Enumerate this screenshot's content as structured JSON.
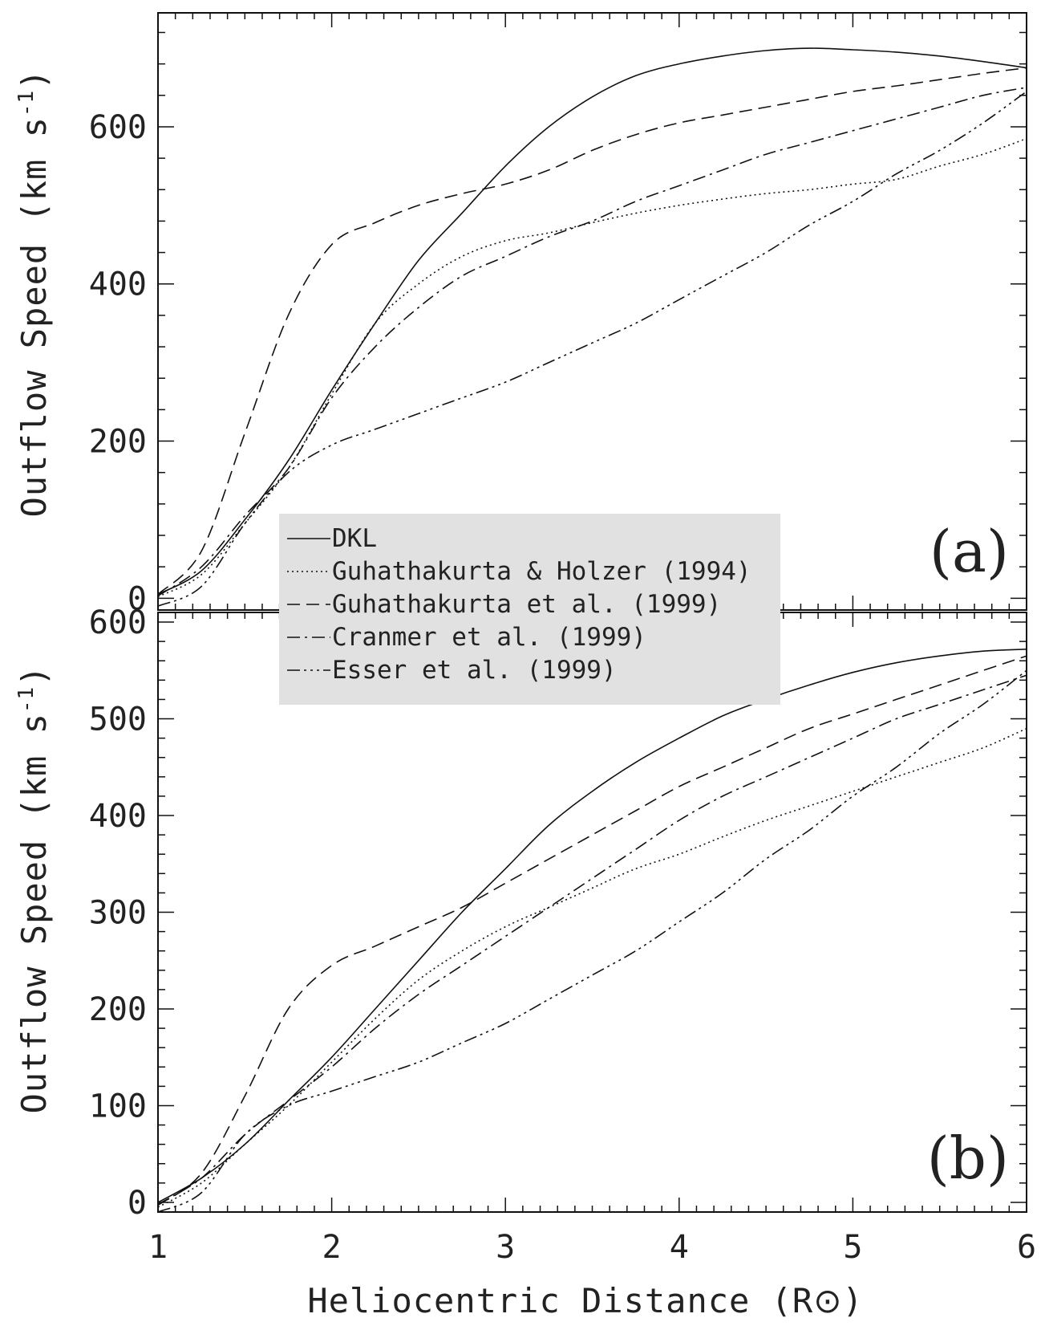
{
  "figure": {
    "xlabel": "Heliocentric Distance (R",
    "xlabel_symbol": "⊙",
    "xlabel_suffix": ")",
    "ylabel_main": "Outflow Speed (km s",
    "ylabel_sup": "-1",
    "ylabel_suffix": ")"
  },
  "legend": {
    "entries": [
      {
        "label": "DKL",
        "style": "solid"
      },
      {
        "label": "Guhathakurta & Holzer (1994)",
        "style": "dotted"
      },
      {
        "label": "Guhathakurta et al. (1999)",
        "style": "dashed"
      },
      {
        "label": "Cranmer et al. (1999)",
        "style": "dashdot"
      },
      {
        "label": "Esser et al. (1999)",
        "style": "dashdotdotdot"
      }
    ]
  },
  "chart_data": [
    {
      "type": "line",
      "panel_label": "(a)",
      "xlabel": "",
      "ylabel": "Outflow Speed (km s-1)",
      "xlim": [
        1,
        6
      ],
      "ylim": [
        -15,
        745
      ],
      "yticks": [
        0,
        200,
        400,
        600
      ],
      "xticks": [
        1,
        2,
        3,
        4,
        5,
        6
      ],
      "grid": false,
      "legend_placement": "center-left",
      "x": [
        1.0,
        1.25,
        1.5,
        1.75,
        2.0,
        2.25,
        2.5,
        2.75,
        3.0,
        3.25,
        3.5,
        3.75,
        4.0,
        4.25,
        4.5,
        4.75,
        5.0,
        5.25,
        5.5,
        5.75,
        6.0
      ],
      "series": [
        {
          "name": "DKL",
          "style": "solid",
          "values": [
            5,
            35,
            100,
            175,
            265,
            350,
            430,
            490,
            550,
            600,
            638,
            665,
            680,
            690,
            697,
            700,
            698,
            695,
            690,
            683,
            675
          ]
        },
        {
          "name": "Guhathakurta & Holzer (1994)",
          "style": "dotted",
          "values": [
            2,
            30,
            95,
            165,
            260,
            350,
            400,
            435,
            455,
            465,
            478,
            490,
            500,
            508,
            515,
            520,
            527,
            533,
            550,
            565,
            585
          ]
        },
        {
          "name": "Guhathakurta et al. (1999)",
          "style": "dashed",
          "values": [
            5,
            60,
            210,
            360,
            450,
            478,
            500,
            515,
            527,
            545,
            570,
            590,
            605,
            615,
            625,
            635,
            645,
            652,
            660,
            668,
            675
          ]
        },
        {
          "name": "Cranmer et al. (1999)",
          "style": "dashdot",
          "values": [
            3,
            40,
            105,
            165,
            255,
            320,
            370,
            410,
            435,
            460,
            480,
            505,
            525,
            545,
            565,
            580,
            595,
            610,
            625,
            640,
            650
          ]
        },
        {
          "name": "Esser et al. (1999)",
          "style": "dashdotdotdot",
          "values": [
            -10,
            15,
            95,
            160,
            195,
            215,
            235,
            255,
            275,
            300,
            325,
            350,
            380,
            410,
            440,
            475,
            505,
            540,
            570,
            605,
            645
          ]
        }
      ]
    },
    {
      "type": "line",
      "panel_label": "(b)",
      "xlabel": "Heliocentric Distance (R⊙)",
      "ylabel": "Outflow Speed (km s-1)",
      "xlim": [
        1,
        6
      ],
      "ylim": [
        -10,
        610
      ],
      "yticks": [
        0,
        100,
        200,
        300,
        400,
        500,
        600
      ],
      "xticks": [
        1,
        2,
        3,
        4,
        5,
        6
      ],
      "grid": false,
      "x": [
        1.0,
        1.25,
        1.5,
        1.75,
        2.0,
        2.25,
        2.5,
        2.75,
        3.0,
        3.25,
        3.5,
        3.75,
        4.0,
        4.25,
        4.5,
        4.75,
        5.0,
        5.25,
        5.5,
        5.75,
        6.0
      ],
      "series": [
        {
          "name": "DKL",
          "style": "solid",
          "values": [
            0,
            25,
            60,
            105,
            150,
            200,
            250,
            300,
            345,
            390,
            425,
            455,
            480,
            503,
            520,
            535,
            548,
            558,
            565,
            570,
            572
          ]
        },
        {
          "name": "Guhathakurta & Holzer (1994)",
          "style": "dotted",
          "values": [
            -5,
            20,
            60,
            100,
            145,
            190,
            230,
            260,
            285,
            305,
            325,
            345,
            360,
            378,
            395,
            410,
            425,
            440,
            455,
            470,
            490
          ]
        },
        {
          "name": "Guhathakurta et al. (1999)",
          "style": "dashed",
          "values": [
            -3,
            30,
            110,
            200,
            245,
            265,
            285,
            305,
            330,
            355,
            380,
            405,
            430,
            450,
            470,
            490,
            505,
            520,
            535,
            550,
            565
          ]
        },
        {
          "name": "Cranmer et al. (1999)",
          "style": "dashdot",
          "values": [
            -2,
            25,
            70,
            105,
            140,
            180,
            215,
            245,
            275,
            305,
            335,
            365,
            395,
            420,
            440,
            460,
            480,
            500,
            515,
            530,
            545
          ]
        },
        {
          "name": "Esser et al. (1999)",
          "style": "dashdotdotdot",
          "values": [
            -10,
            10,
            70,
            100,
            115,
            130,
            145,
            165,
            185,
            210,
            235,
            260,
            290,
            320,
            355,
            385,
            420,
            450,
            485,
            515,
            550
          ]
        }
      ]
    }
  ]
}
